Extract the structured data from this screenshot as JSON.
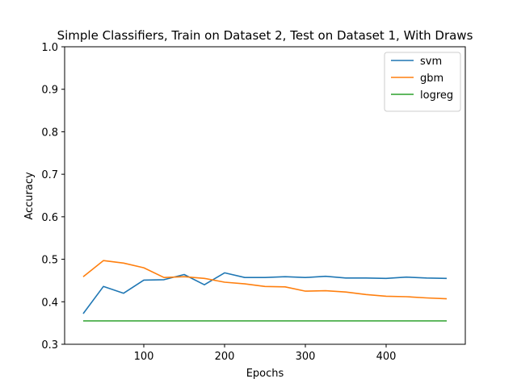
{
  "chart_data": {
    "type": "line",
    "title": "Simple Classifiers, Train on Dataset 2, Test on Dataset 1, With Draws",
    "xlabel": "Epochs",
    "ylabel": "Accuracy",
    "xlim": [
      2,
      498
    ],
    "ylim": [
      0.3,
      1.0
    ],
    "xticks": [
      100,
      200,
      300,
      400
    ],
    "yticks": [
      0.3,
      0.4,
      0.5,
      0.6,
      0.7,
      0.8,
      0.9,
      1.0
    ],
    "xtick_labels": [
      "100",
      "200",
      "300",
      "400"
    ],
    "ytick_labels": [
      "0.3",
      "0.4",
      "0.5",
      "0.6",
      "0.7",
      "0.8",
      "0.9",
      "1.0"
    ],
    "grid": false,
    "legend_position": "top-right",
    "x": [
      25,
      50,
      75,
      100,
      125,
      150,
      175,
      200,
      225,
      250,
      275,
      300,
      325,
      350,
      375,
      400,
      425,
      450,
      475
    ],
    "series": [
      {
        "name": "svm",
        "color": "#1f77b4",
        "values": [
          0.372,
          0.436,
          0.42,
          0.451,
          0.452,
          0.464,
          0.44,
          0.468,
          0.457,
          0.457,
          0.459,
          0.457,
          0.46,
          0.456,
          0.456,
          0.455,
          0.458,
          0.456,
          0.455
        ]
      },
      {
        "name": "gbm",
        "color": "#ff7f0e",
        "values": [
          0.459,
          0.497,
          0.491,
          0.48,
          0.457,
          0.459,
          0.455,
          0.446,
          0.442,
          0.436,
          0.435,
          0.425,
          0.426,
          0.423,
          0.417,
          0.413,
          0.412,
          0.409,
          0.407
        ]
      },
      {
        "name": "logreg",
        "color": "#2ca02c",
        "values": [
          0.355,
          0.355,
          0.355,
          0.355,
          0.355,
          0.355,
          0.355,
          0.355,
          0.355,
          0.355,
          0.355,
          0.355,
          0.355,
          0.355,
          0.355,
          0.355,
          0.355,
          0.355,
          0.355
        ]
      }
    ]
  }
}
